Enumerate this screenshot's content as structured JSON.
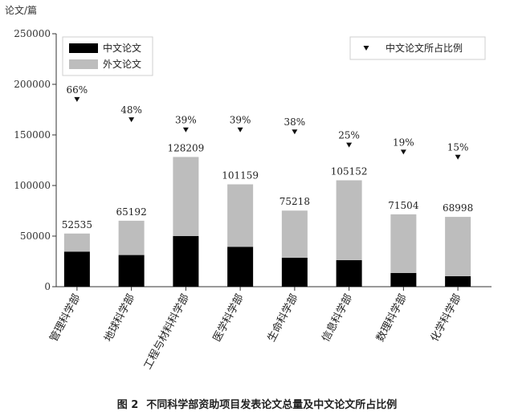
{
  "caption": {
    "number": "图 2",
    "text": "不同科学部资助项目发表论文总量及中文论文所占比例"
  },
  "chart_data": {
    "type": "bar",
    "ylabel": "论文/篇",
    "ylim": [
      0,
      250000
    ],
    "yticks": [
      0,
      50000,
      100000,
      150000,
      200000,
      250000
    ],
    "categories": [
      "管理科学部",
      "地球科学部",
      "工程与材料科学部",
      "医学科学部",
      "生命科学部",
      "信息科学部",
      "数理科学部",
      "化学科学部"
    ],
    "totals": [
      52535,
      65192,
      128209,
      101159,
      75218,
      105152,
      71504,
      68998
    ],
    "series": [
      {
        "name": "中文论文",
        "values": [
          34674,
          31292,
          50001,
          39452,
          28583,
          26288,
          13586,
          10350
        ],
        "color": "#000000"
      },
      {
        "name": "外文论文",
        "values": [
          17861,
          33900,
          78208,
          61707,
          46635,
          78864,
          57918,
          58648
        ],
        "color": "#bdbdbd"
      }
    ],
    "ratio": {
      "name": "中文论文所占比例",
      "labels": [
        "66%",
        "48%",
        "39%",
        "39%",
        "38%",
        "25%",
        "19%",
        "15%"
      ],
      "values": [
        66,
        48,
        39,
        39,
        38,
        25,
        19,
        15
      ],
      "marker_y": [
        185000,
        165000,
        155000,
        155000,
        153000,
        140000,
        133000,
        128000
      ]
    },
    "legend_left": "top-left",
    "legend_right": "top-right",
    "grid": false
  }
}
